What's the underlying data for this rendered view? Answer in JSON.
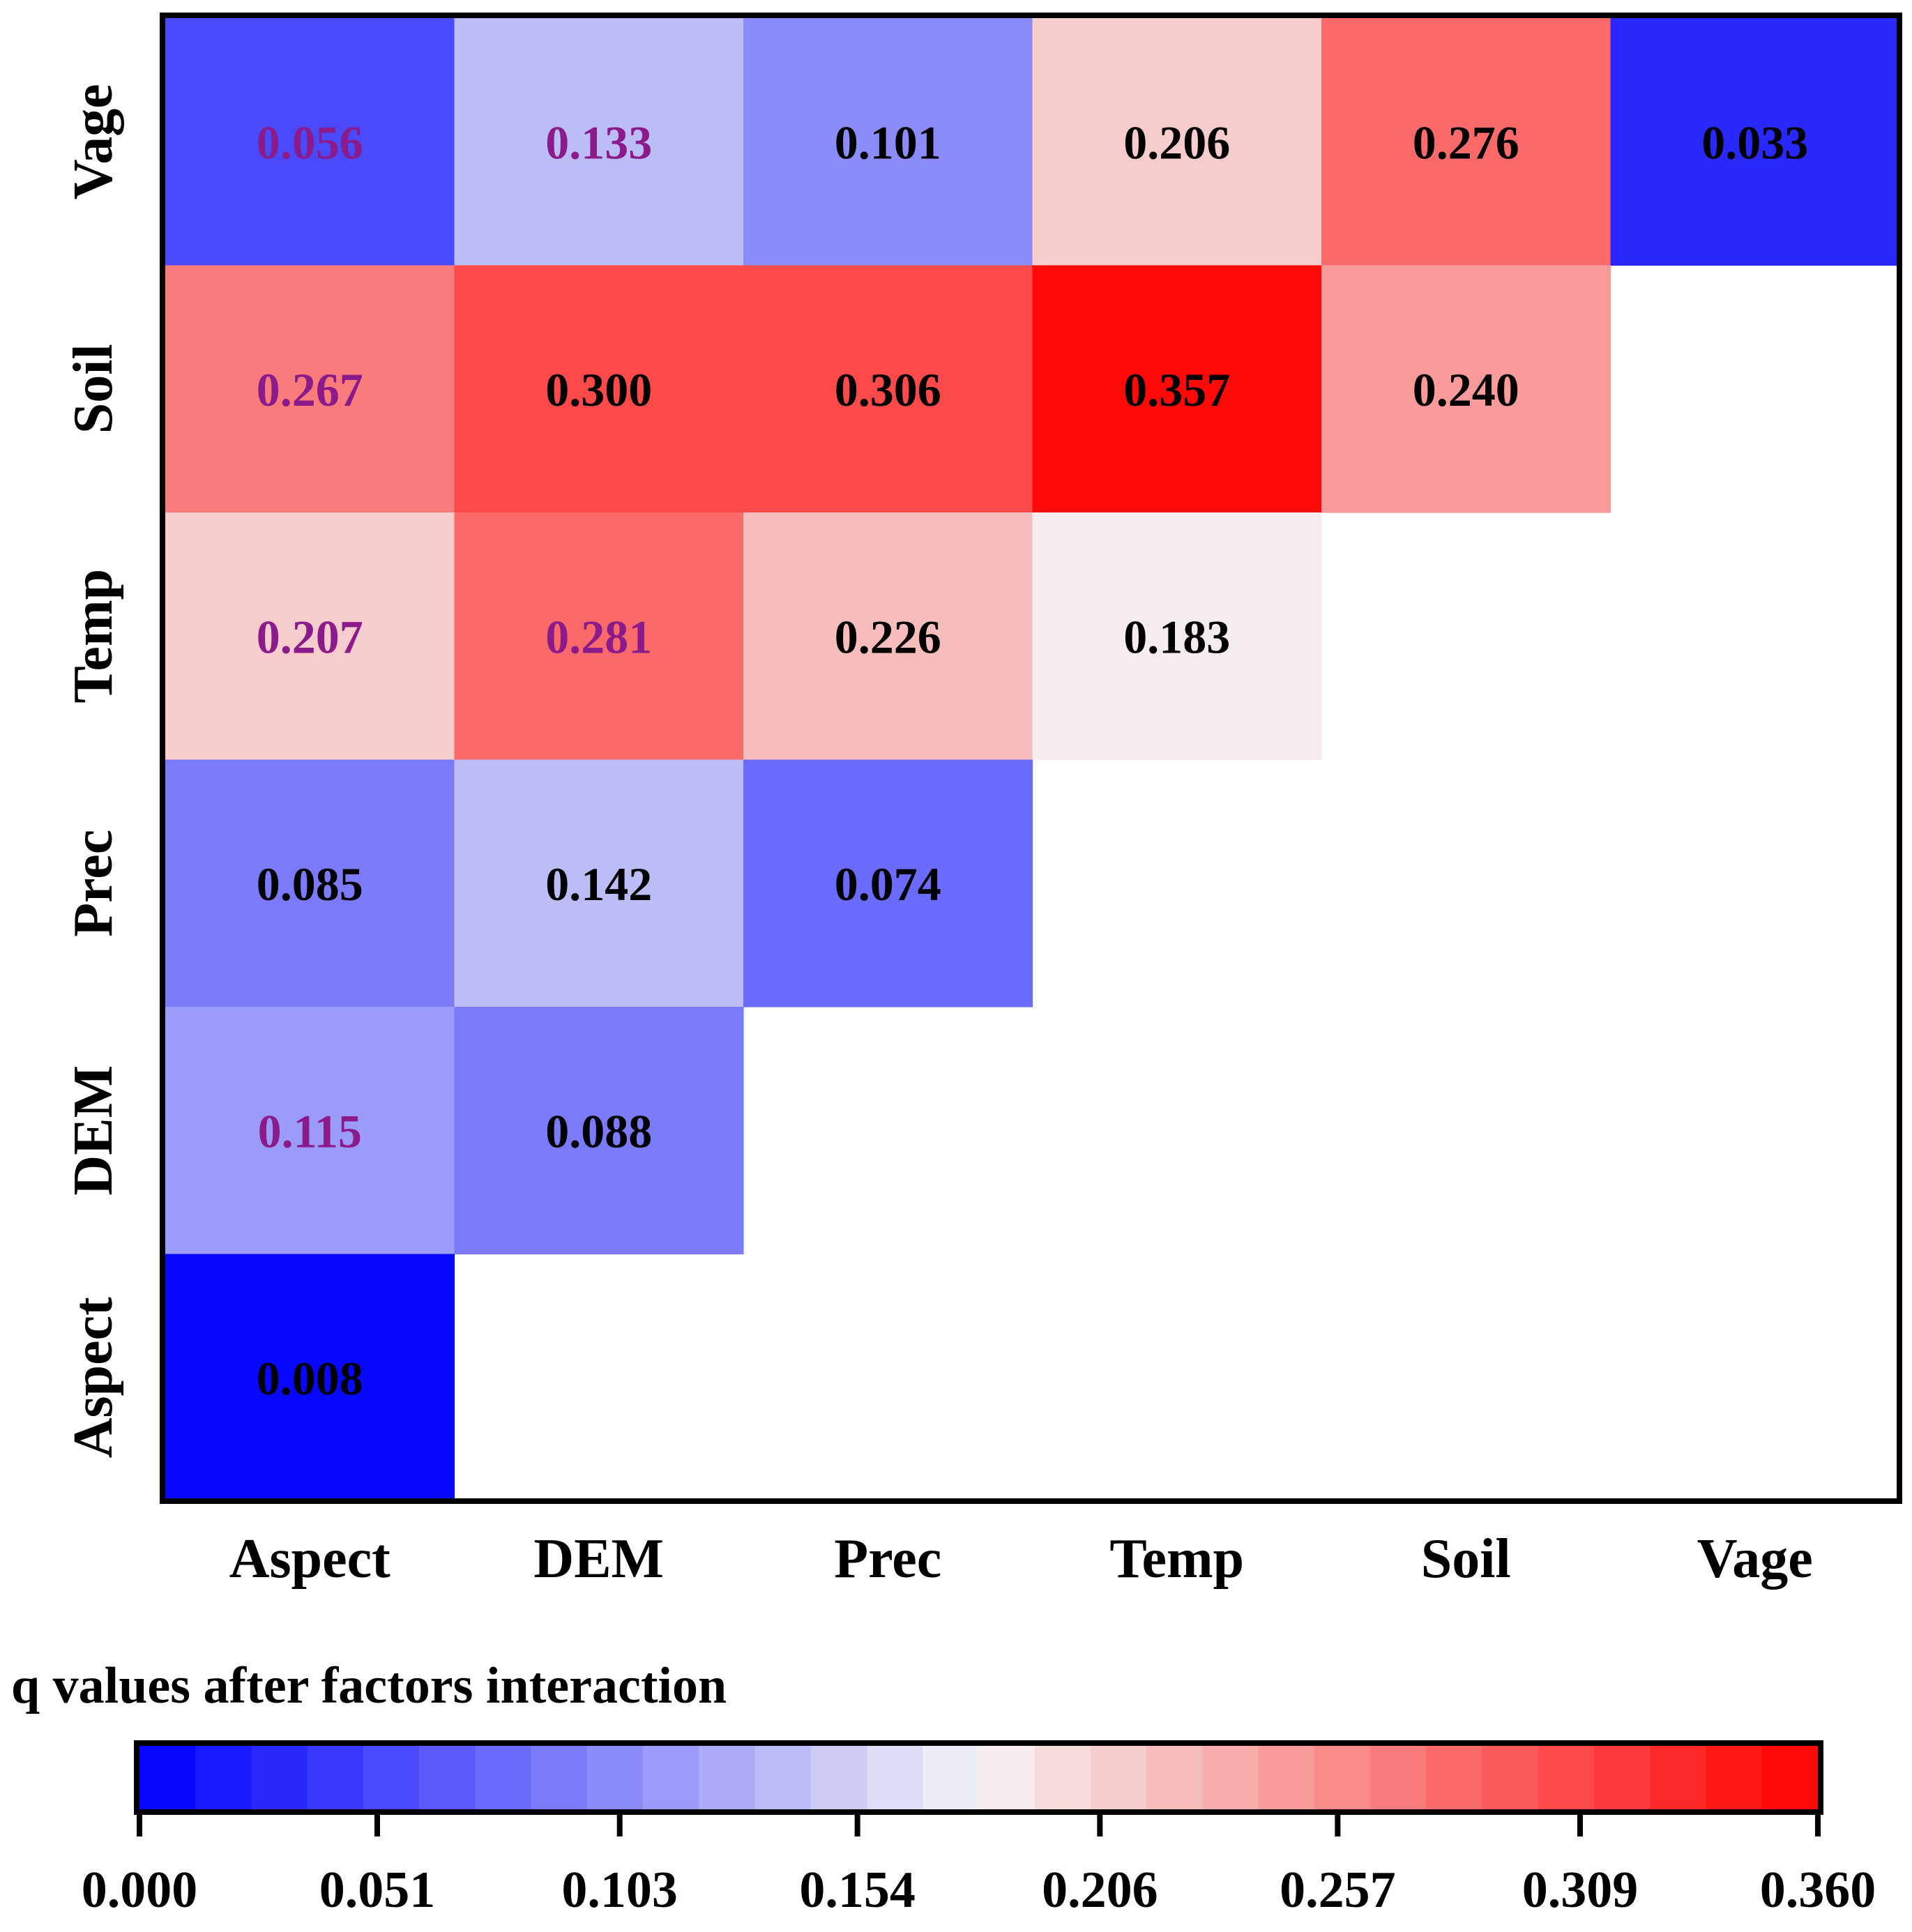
{
  "chart_data": {
    "type": "heatmap",
    "title": "",
    "x_labels": [
      "Aspect",
      "DEM",
      "Prec",
      "Temp",
      "Soil",
      "Vage"
    ],
    "y_labels": [
      "Vage",
      "Soil",
      "Temp",
      "Prec",
      "DEM",
      "Aspect"
    ],
    "cells": [
      {
        "row": "Vage",
        "col": "Aspect",
        "value": 0.056,
        "label": "0.056",
        "label_color": "#8B1A8B"
      },
      {
        "row": "Vage",
        "col": "DEM",
        "value": 0.133,
        "label": "0.133",
        "label_color": "#8B1A8B"
      },
      {
        "row": "Vage",
        "col": "Prec",
        "value": 0.101,
        "label": "0.101",
        "label_color": "#000000"
      },
      {
        "row": "Vage",
        "col": "Temp",
        "value": 0.206,
        "label": "0.206",
        "label_color": "#000000"
      },
      {
        "row": "Vage",
        "col": "Soil",
        "value": 0.276,
        "label": "0.276",
        "label_color": "#000000"
      },
      {
        "row": "Vage",
        "col": "Vage",
        "value": 0.033,
        "label": "0.033",
        "label_color": "#000000"
      },
      {
        "row": "Soil",
        "col": "Aspect",
        "value": 0.267,
        "label": "0.267",
        "label_color": "#8B1A8B"
      },
      {
        "row": "Soil",
        "col": "DEM",
        "value": 0.3,
        "label": "0.300",
        "label_color": "#000000"
      },
      {
        "row": "Soil",
        "col": "Prec",
        "value": 0.306,
        "label": "0.306",
        "label_color": "#000000"
      },
      {
        "row": "Soil",
        "col": "Temp",
        "value": 0.357,
        "label": "0.357",
        "label_color": "#000000"
      },
      {
        "row": "Soil",
        "col": "Soil",
        "value": 0.24,
        "label": "0.240",
        "label_color": "#000000"
      },
      {
        "row": "Temp",
        "col": "Aspect",
        "value": 0.207,
        "label": "0.207",
        "label_color": "#8B1A8B"
      },
      {
        "row": "Temp",
        "col": "DEM",
        "value": 0.281,
        "label": "0.281",
        "label_color": "#8B1A8B"
      },
      {
        "row": "Temp",
        "col": "Prec",
        "value": 0.226,
        "label": "0.226",
        "label_color": "#000000"
      },
      {
        "row": "Temp",
        "col": "Temp",
        "value": 0.183,
        "label": "0.183",
        "label_color": "#000000"
      },
      {
        "row": "Prec",
        "col": "Aspect",
        "value": 0.085,
        "label": "0.085",
        "label_color": "#000000"
      },
      {
        "row": "Prec",
        "col": "DEM",
        "value": 0.142,
        "label": "0.142",
        "label_color": "#000000"
      },
      {
        "row": "Prec",
        "col": "Prec",
        "value": 0.074,
        "label": "0.074",
        "label_color": "#000000"
      },
      {
        "row": "DEM",
        "col": "Aspect",
        "value": 0.115,
        "label": "0.115",
        "label_color": "#8B1A8B"
      },
      {
        "row": "DEM",
        "col": "DEM",
        "value": 0.088,
        "label": "0.088",
        "label_color": "#000000"
      },
      {
        "row": "Aspect",
        "col": "Aspect",
        "value": 0.008,
        "label": "0.008",
        "label_color": "#000000"
      }
    ],
    "colorbar": {
      "title": "q values after factors interaction",
      "range": [
        0.0,
        0.36
      ],
      "tick_values": [
        0.0,
        0.051,
        0.103,
        0.154,
        0.206,
        0.257,
        0.309,
        0.36
      ],
      "tick_labels": [
        "0.000",
        "0.051",
        "0.103",
        "0.154",
        "0.206",
        "0.257",
        "0.309",
        "0.360"
      ],
      "segments": 30,
      "colors": {
        "low": "#0000ff",
        "mid": "#f5f5f5",
        "high": "#ff0000"
      }
    }
  }
}
